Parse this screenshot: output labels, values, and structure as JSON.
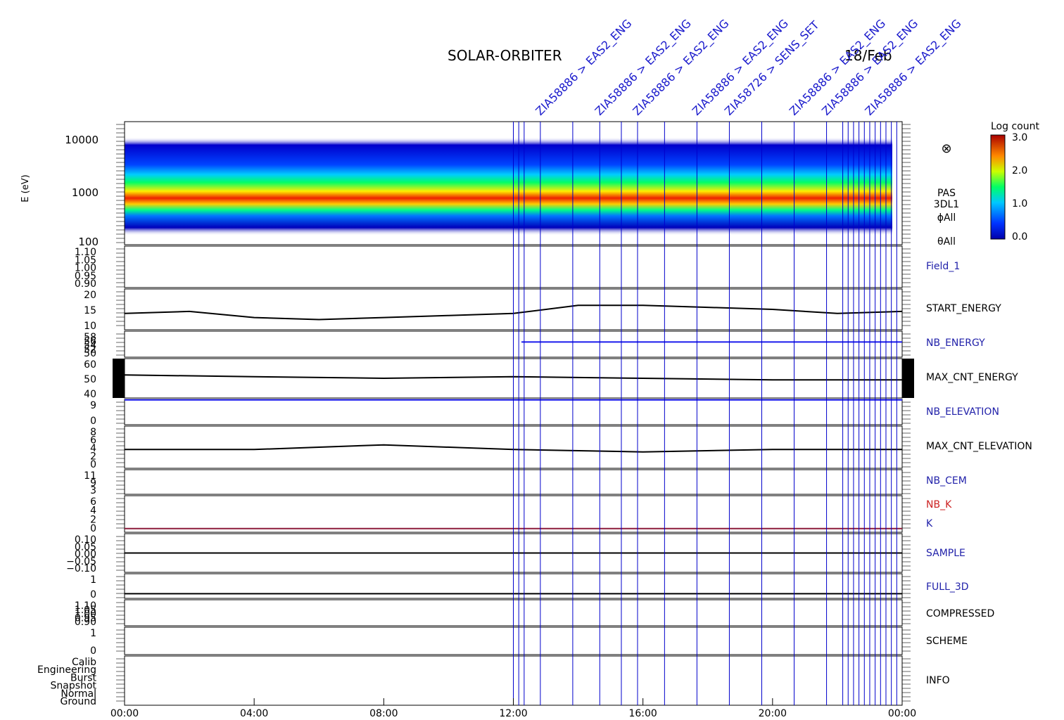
{
  "title": "SOLAR-ORBITER",
  "date_label": "18/Feb",
  "colors": {
    "axis": "#000000",
    "event_line": "#0000cc",
    "event_label": "#1a1acc",
    "label_blue": "#2222aa",
    "label_red": "#cc2222",
    "k_line": "#8b1a3a",
    "series_black": "#000000",
    "series_blue": "#1a1aee"
  },
  "colorbar": {
    "title": "Log count",
    "ticks": [
      "3.0",
      "2.0",
      "1.0",
      "0.0"
    ]
  },
  "spectrogram": {
    "ylabel": "E (eV)",
    "yticks": [
      "10000",
      "1000",
      "100"
    ],
    "side_labels": [
      "PAS",
      "3DL1",
      "ϕAll",
      "θAll"
    ],
    "symbol": "⊗"
  },
  "time_axis": {
    "ticks": [
      "00:00",
      "04:00",
      "08:00",
      "12:00",
      "16:00",
      "20:00",
      "00:00"
    ]
  },
  "event_labels": [
    "ZIA58886 > EAS2_ENG",
    "ZIA58886 > EAS2_ENG",
    "ZIA58886 > EAS2_ENG",
    "ZIA58886 > EAS2_ENG",
    "ZIA58726 > SENS_SET",
    "ZIA58886 > EAS2_ENG",
    "ZIA58886 > EAS2_ENG",
    "ZIA58886 > EAS2_ENG"
  ],
  "chart_data": [
    {
      "type": "heatmap",
      "name": "PAS 3DL1 energy spectrogram",
      "ylabel": "E (eV)",
      "yscale": "log",
      "ylim": [
        100,
        10000
      ],
      "xlim": [
        "00:00",
        "24:00"
      ],
      "colorbar": {
        "label": "Log count",
        "range": [
          0.0,
          3.0
        ]
      },
      "peak_energy_eV": [
        [
          "00:00",
          900
        ],
        [
          "02:00",
          950
        ],
        [
          "04:00",
          1050
        ],
        [
          "06:00",
          1000
        ],
        [
          "08:00",
          950
        ],
        [
          "10:00",
          950
        ],
        [
          "12:00",
          900
        ],
        [
          "14:00",
          900
        ],
        [
          "16:00",
          950
        ],
        [
          "18:00",
          1100
        ],
        [
          "20:00",
          1050
        ],
        [
          "22:00",
          1000
        ],
        [
          "24:00",
          1000
        ]
      ]
    },
    {
      "type": "line",
      "label": "Field_1",
      "label_color": "blue",
      "yticks": [
        "1.10",
        "1.05",
        "1.00",
        "0.95",
        "0.90"
      ],
      "series": []
    },
    {
      "type": "line",
      "label": "START_ENERGY",
      "label_color": "black",
      "yticks": [
        "20",
        "15",
        "10"
      ],
      "x": [
        "00:00",
        "02:00",
        "04:00",
        "06:00",
        "08:00",
        "10:00",
        "12:00",
        "14:00",
        "16:00",
        "18:00",
        "20:00",
        "22:00",
        "24:00"
      ],
      "series": [
        {
          "values": [
            13,
            14,
            11,
            10,
            11,
            12,
            13,
            17,
            17,
            16,
            15,
            13,
            14
          ]
        }
      ]
    },
    {
      "type": "line",
      "label": "NB_ENERGY",
      "label_color": "blue",
      "yticks": [
        "58",
        "56",
        "54",
        "52",
        "50"
      ],
      "x": [
        "12:15",
        "24:00"
      ],
      "series": [
        {
          "values": [
            55,
            55
          ]
        }
      ]
    },
    {
      "type": "line",
      "label": "MAX_CNT_ENERGY",
      "label_color": "black",
      "yticks": [
        "60",
        "50",
        "40"
      ],
      "x": [
        "00:00",
        "04:00",
        "08:00",
        "12:00",
        "16:00",
        "20:00",
        "24:00"
      ],
      "series": [
        {
          "values": [
            52,
            51,
            50,
            51,
            50,
            49,
            49
          ]
        }
      ]
    },
    {
      "type": "line",
      "label": "NB_ELEVATION",
      "label_color": "blue",
      "yticks": [
        "9",
        "0"
      ],
      "x": [
        "00:00",
        "24:00"
      ],
      "series": [
        {
          "values": [
            9,
            9
          ]
        }
      ]
    },
    {
      "type": "line",
      "label": "MAX_CNT_ELEVATION",
      "label_color": "black",
      "yticks": [
        "8",
        "6",
        "4",
        "2",
        "0"
      ],
      "x": [
        "00:00",
        "04:00",
        "08:00",
        "12:00",
        "16:00",
        "20:00",
        "24:00"
      ],
      "series": [
        {
          "values": [
            4,
            4,
            5,
            4,
            3.5,
            4,
            4
          ]
        }
      ]
    },
    {
      "type": "line",
      "label": "NB_CEM",
      "label_color": "blue",
      "yticks": [
        "11",
        "9",
        "3"
      ],
      "series": []
    },
    {
      "type": "line",
      "label": "NB_K",
      "label_color": "red",
      "yticks": [
        "6",
        "4",
        "2",
        "0"
      ],
      "series": []
    },
    {
      "type": "line",
      "label": "K",
      "label_color": "blue",
      "x": [
        "00:00",
        "24:00"
      ],
      "series": [
        {
          "values": [
            1,
            1
          ]
        }
      ]
    },
    {
      "type": "line",
      "label": "SAMPLE",
      "label_color": "blue",
      "yticks": [
        "0.10",
        "0.05",
        "0.00",
        "−0.05",
        "−0.10"
      ],
      "series": [
        {
          "values": [
            0,
            0
          ]
        }
      ]
    },
    {
      "type": "line",
      "label": "FULL_3D",
      "label_color": "blue",
      "yticks": [
        "1",
        "0"
      ],
      "series": [
        {
          "values": [
            0,
            0
          ]
        }
      ]
    },
    {
      "type": "line",
      "label": "COMPRESSED",
      "label_color": "black",
      "yticks": [
        "1.10",
        "1.05",
        "1.00",
        "0.95",
        "0.90"
      ],
      "series": []
    },
    {
      "type": "line",
      "label": "SCHEME",
      "label_color": "black",
      "yticks": [
        "1",
        "0"
      ],
      "series": []
    },
    {
      "type": "line",
      "label": "INFO",
      "label_color": "black",
      "yticks": [
        "Calib",
        "Engineering",
        "Burst",
        "Snapshot",
        "Normal",
        "Ground"
      ],
      "series": []
    }
  ]
}
